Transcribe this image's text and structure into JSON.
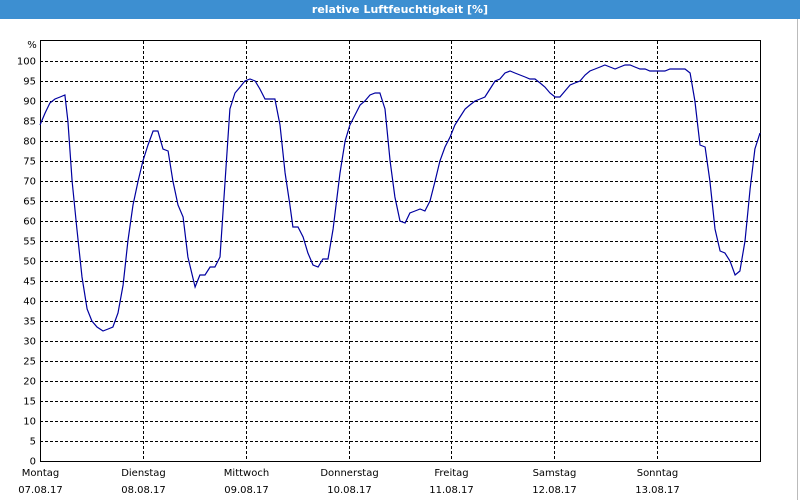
{
  "chart_data": {
    "type": "line",
    "title": "relative Luftfeuchtigkeit [%]",
    "y_label": "%",
    "xlim": [
      0,
      168
    ],
    "xticks": [
      {
        "value": 0,
        "label": "Montag",
        "sublabel": "07.08.17"
      },
      {
        "value": 24,
        "label": "Dienstag",
        "sublabel": "08.08.17"
      },
      {
        "value": 48,
        "label": "Mittwoch",
        "sublabel": "09.08.17"
      },
      {
        "value": 72,
        "label": "Donnerstag",
        "sublabel": "10.08.17"
      },
      {
        "value": 96,
        "label": "Freitag",
        "sublabel": "11.08.17"
      },
      {
        "value": 120,
        "label": "Samstag",
        "sublabel": "12.08.17"
      },
      {
        "value": 144,
        "label": "Sonntag",
        "sublabel": "13.08.17"
      }
    ],
    "ylim": [
      0,
      105
    ],
    "yticks": [
      0,
      5,
      10,
      15,
      20,
      25,
      30,
      35,
      40,
      45,
      50,
      55,
      60,
      65,
      70,
      75,
      80,
      85,
      90,
      95,
      100
    ],
    "grid": true,
    "series": [
      {
        "name": "relative Luftfeuchtigkeit",
        "color": "#0000a0",
        "x": [
          0,
          1.2,
          2.3,
          3.5,
          4.7,
          5.8,
          6.5,
          7.5,
          8.6,
          9.8,
          11.0,
          12.1,
          13.3,
          14.7,
          15.9,
          17.0,
          18.2,
          19.4,
          20.5,
          21.7,
          22.9,
          24.0,
          25.2,
          26.4,
          27.5,
          28.7,
          29.9,
          31.0,
          32.2,
          33.4,
          34.5,
          36.2,
          37.3,
          38.5,
          39.7,
          40.8,
          42.0,
          43.2,
          44.3,
          45.5,
          46.7,
          47.8,
          49.0,
          50.2,
          51.3,
          52.5,
          53.7,
          54.8,
          56.0,
          57.2,
          58.3,
          59.0,
          60.2,
          61.4,
          62.5,
          63.7,
          64.9,
          66.0,
          67.2,
          68.4,
          70.0,
          71.2,
          72.3,
          73.5,
          74.7,
          75.8,
          77.0,
          78.2,
          79.3,
          80.5,
          81.7,
          82.8,
          84.0,
          85.2,
          86.3,
          87.5,
          88.7,
          89.8,
          91.0,
          92.2,
          93.3,
          94.5,
          95.7,
          96.8,
          98.0,
          99.2,
          100.3,
          101.5,
          102.7,
          103.8,
          105.0,
          106.2,
          107.3,
          108.5,
          109.7,
          110.8,
          112.0,
          113.2,
          114.3,
          115.5,
          116.7,
          117.8,
          119.0,
          120.2,
          121.3,
          122.5,
          123.7,
          124.8,
          126.0,
          127.2,
          128.3,
          129.5,
          130.7,
          131.8,
          133.0,
          134.2,
          135.3,
          136.5,
          137.7,
          138.8,
          140.0,
          141.2,
          142.3,
          143.5,
          144.7,
          145.8,
          147.0,
          148.2,
          149.3,
          150.5,
          151.7,
          152.8,
          154.0,
          155.2,
          156.3,
          157.5,
          158.7,
          159.8,
          161.0,
          162.2,
          163.3,
          164.5,
          165.7,
          166.8,
          168.0
        ],
        "values": [
          84,
          87,
          89.5,
          90.5,
          91,
          91.5,
          85,
          70,
          58,
          46,
          38,
          35,
          33.5,
          32.5,
          33,
          33.5,
          37,
          44,
          55,
          64,
          70,
          75,
          79,
          82.5,
          82.5,
          78,
          77.5,
          70,
          64,
          61,
          51,
          43.5,
          46.5,
          46.5,
          48.5,
          48.5,
          51,
          70,
          88,
          92,
          93.5,
          95,
          95.5,
          95,
          93,
          90.5,
          90.5,
          90.5,
          84,
          72,
          64,
          58.5,
          58.5,
          56,
          52,
          49,
          48.5,
          50.5,
          50.5,
          58,
          72,
          80,
          84,
          86.5,
          89,
          90,
          91.5,
          92,
          92,
          88,
          75,
          66,
          60,
          59.5,
          62,
          62.5,
          63,
          62.5,
          65,
          70,
          75,
          78.5,
          81,
          84,
          86,
          88,
          89,
          90,
          90.5,
          91,
          93,
          95,
          95.5,
          97,
          97.5,
          97,
          96.5,
          96,
          95.5,
          95.5,
          94.5,
          93.5,
          92,
          91,
          91,
          92.5,
          94,
          94.5,
          95,
          96.5,
          97.5,
          98,
          98.5,
          99,
          98.5,
          98,
          98.5,
          99,
          99,
          98.5,
          98,
          98,
          97.5,
          97.5,
          97.5,
          97.5,
          98,
          98,
          98,
          98,
          97,
          90,
          79,
          78.5,
          70,
          58,
          52.5,
          52,
          50,
          46.5,
          47.5,
          55,
          68,
          78,
          82
        ]
      }
    ]
  }
}
